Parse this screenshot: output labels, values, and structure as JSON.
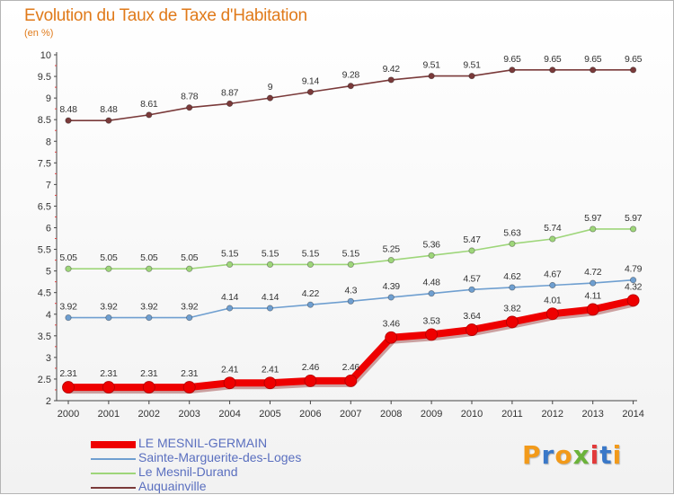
{
  "header": {
    "title": "Evolution du Taux de Taxe d'Habitation",
    "subtitle": "(en %)"
  },
  "logo": {
    "text": "Proxiti",
    "letter_colors": [
      "#f29a1a",
      "#3a78c8",
      "#f29a1a",
      "#6bb33a",
      "#e23a3a",
      "#3a78c8",
      "#f29a1a"
    ]
  },
  "chart_data": {
    "type": "line",
    "title": "Evolution du Taux de Taxe d'Habitation",
    "ylabel": "(en %)",
    "xlabel": "",
    "x": [
      "2000",
      "2001",
      "2002",
      "2003",
      "2004",
      "2005",
      "2006",
      "2007",
      "2008",
      "2009",
      "2010",
      "2011",
      "2012",
      "2013",
      "2014"
    ],
    "ylim": [
      2,
      10
    ],
    "yticks": [
      "2",
      "2.5",
      "3",
      "3.5",
      "4",
      "4.5",
      "5",
      "5.5",
      "6",
      "6.5",
      "7",
      "7.5",
      "8",
      "8.5",
      "9",
      "9.5",
      "10"
    ],
    "grid": false,
    "legend_position": "bottom-left",
    "series": [
      {
        "name": "LE MESNIL-GERMAIN",
        "color": "#ee0000",
        "values": [
          2.31,
          2.31,
          2.31,
          2.31,
          2.41,
          2.41,
          2.46,
          2.46,
          3.46,
          3.53,
          3.64,
          3.82,
          4.01,
          4.11,
          4.32
        ],
        "labels": [
          "2.31",
          "2.31",
          "2.31",
          "2.31",
          "2.41",
          "2.41",
          "2.46",
          "2.46",
          "3.46",
          "3.53",
          "3.64",
          "3.82",
          "4.01",
          "4.11",
          "4.32"
        ]
      },
      {
        "name": "Sainte-Marguerite-des-Loges",
        "color": "#6f9fd0",
        "values": [
          3.92,
          3.92,
          3.92,
          3.92,
          4.14,
          4.14,
          4.22,
          4.3,
          4.39,
          4.48,
          4.57,
          4.62,
          4.67,
          4.72,
          4.79
        ],
        "labels": [
          "3.92",
          "3.92",
          "3.92",
          "3.92",
          "4.14",
          "4.14",
          "4.22",
          "4.3",
          "4.39",
          "4.48",
          "4.57",
          "4.62",
          "4.67",
          "4.72",
          "4.79"
        ]
      },
      {
        "name": "Le Mesnil-Durand",
        "color": "#9ed67a",
        "values": [
          5.05,
          5.05,
          5.05,
          5.05,
          5.15,
          5.15,
          5.15,
          5.15,
          5.25,
          5.36,
          5.47,
          5.63,
          5.74,
          5.97,
          5.97
        ],
        "labels": [
          "5.05",
          "5.05",
          "5.05",
          "5.05",
          "5.15",
          "5.15",
          "5.15",
          "5.15",
          "5.25",
          "5.36",
          "5.47",
          "5.63",
          "5.74",
          "5.97",
          "5.97"
        ]
      },
      {
        "name": "Auquainville",
        "color": "#7a3a3a",
        "values": [
          8.48,
          8.48,
          8.61,
          8.78,
          8.87,
          9.0,
          9.14,
          9.28,
          9.42,
          9.51,
          9.51,
          9.65,
          9.65,
          9.65,
          9.65
        ],
        "labels": [
          "8.48",
          "8.48",
          "8.61",
          "8.78",
          "8.87",
          "9",
          "9.14",
          "9.28",
          "9.42",
          "9.51",
          "9.51",
          "9.65",
          "9.65",
          "9.65",
          "9.65"
        ]
      }
    ]
  }
}
